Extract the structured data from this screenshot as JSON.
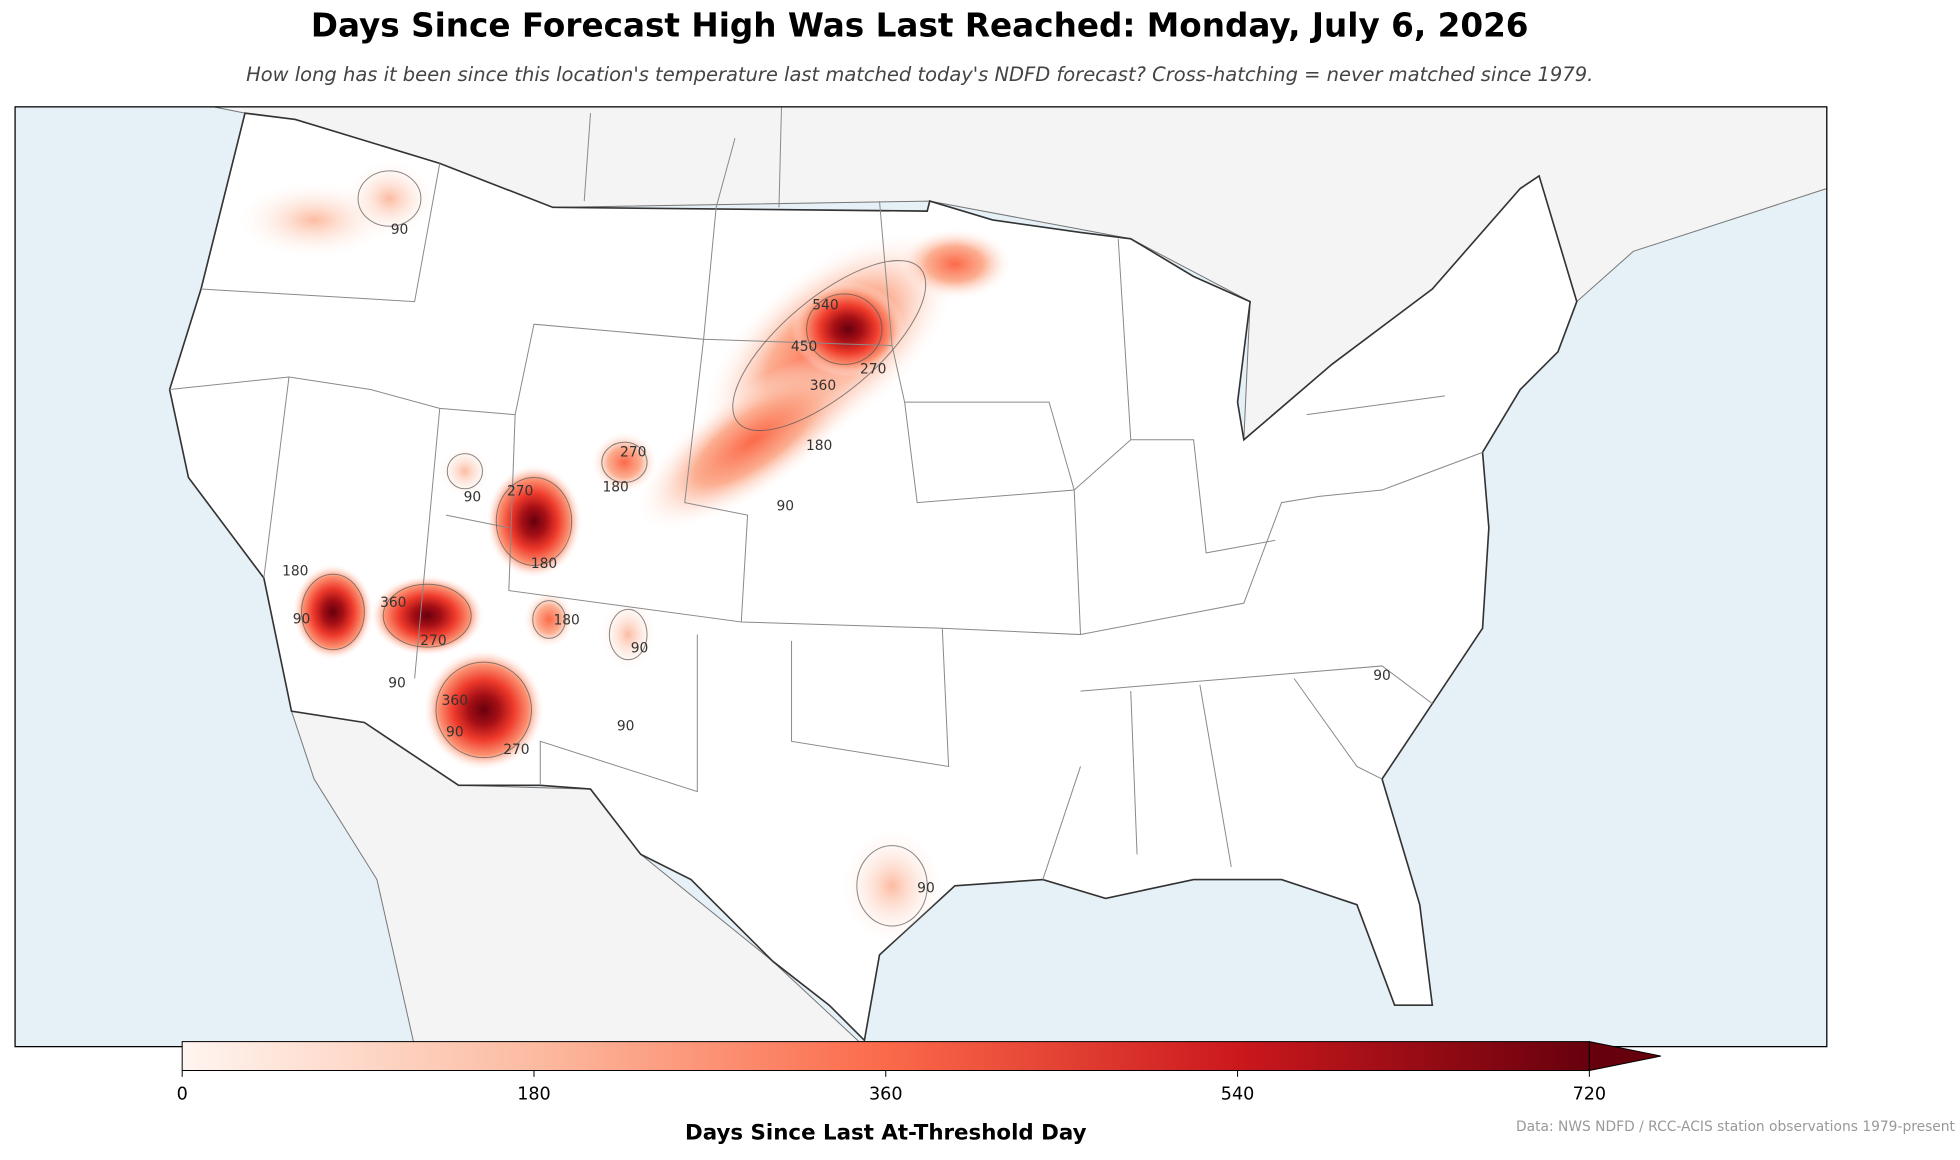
{
  "header": {
    "title": "Days Since Forecast High Was Last Reached: Monday, July 6, 2026",
    "subtitle": "How long has it been since this location's temperature last matched today's NDFD forecast? Cross-hatching = never matched since 1979."
  },
  "colorbar": {
    "label": "Days Since Last At-Threshold Day",
    "lim": [
      0,
      720
    ],
    "ticks": [
      0,
      180,
      360,
      540,
      720
    ],
    "extend": "max"
  },
  "contour_labels": [
    90,
    90,
    180,
    270,
    360,
    450,
    540,
    270,
    180,
    90,
    270,
    180,
    90,
    180,
    360,
    270,
    90,
    180,
    90,
    90,
    360,
    270,
    90,
    90,
    90
  ],
  "source": "Data: NWS NDFD / RCC-ACIS station observations 1979-present"
}
